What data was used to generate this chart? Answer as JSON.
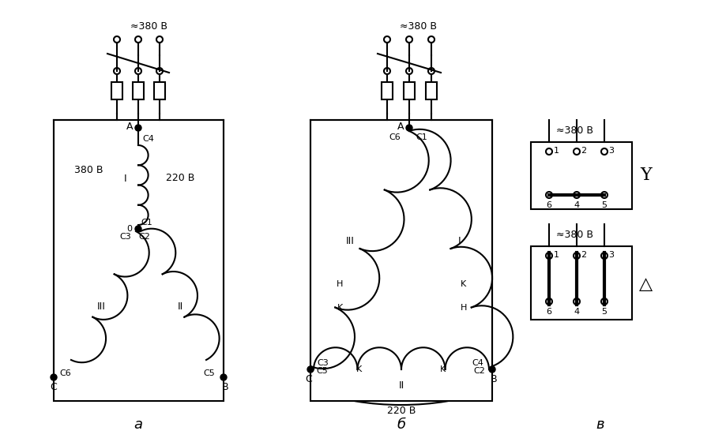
{
  "bg_color": "#ffffff",
  "line_color": "#000000",
  "label_a": "а",
  "label_b": "б",
  "label_v": "в",
  "voltage_380": "≈380 В",
  "voltage_220": "220 В",
  "voltage_380_2": "380 В"
}
